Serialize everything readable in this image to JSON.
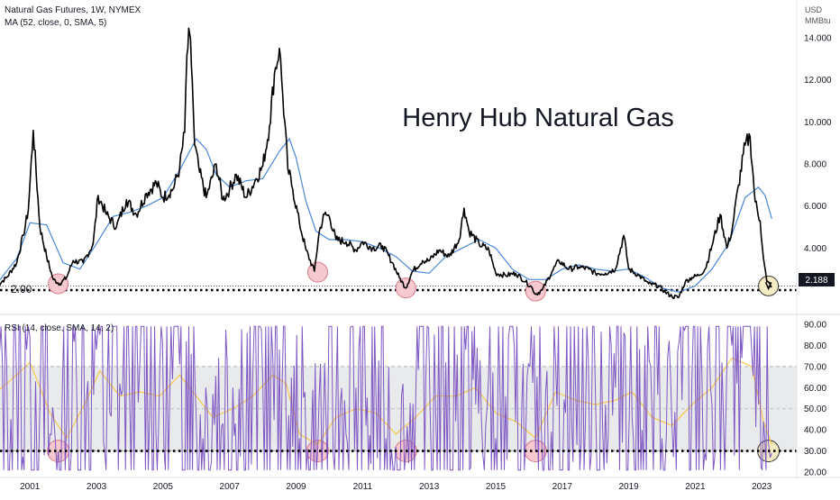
{
  "header": {
    "title_line": "Natural Gas Futures, 1W, NYMEX",
    "ma_line": "MA (52, close, 0, SMA, 5)",
    "currency": "USD",
    "unit": "MMBtu"
  },
  "annotation": {
    "title": "Henry Hub Natural Gas",
    "support_label": "2.00",
    "price_badge": "2.188"
  },
  "rsi_panel": {
    "legend": "RSI (14, close, SMA, 14, 2)"
  },
  "colors": {
    "price": "#000000",
    "ma": "#4a86d8",
    "rsi": "#7e57c2",
    "rsi_sma": "#f5c84c",
    "band": "#e9eaec",
    "circle_fill": "#f6c9d0",
    "circle_stroke": "#d77c89",
    "last_circle_fill": "#f4ecc4",
    "last_circle_stroke": "#333333"
  },
  "chart_data": [
    {
      "type": "line",
      "title": "Natural Gas Futures, 1W, NYMEX",
      "ylabel": "USD MMBtu",
      "ylim": [
        1.4,
        14.8
      ],
      "y_ticks": [
        "4.000",
        "6.000",
        "8.000",
        "10.000",
        "12.000",
        "14.000"
      ],
      "x_ticks": [
        "2001",
        "2003",
        "2005",
        "2007",
        "2009",
        "2011",
        "2013",
        "2015",
        "2017",
        "2019",
        "2021",
        "2023"
      ],
      "support_level": 2.0,
      "last_value": 2.188,
      "series": [
        {
          "name": "Natural Gas Futures, 1W, NYMEX",
          "x": [
            2000.0,
            2000.3,
            2000.6,
            2000.8,
            2000.95,
            2001.1,
            2001.3,
            2001.5,
            2001.7,
            2001.9,
            2002.1,
            2002.3,
            2002.6,
            2002.9,
            2003.05,
            2003.3,
            2003.6,
            2003.9,
            2004.2,
            2004.5,
            2004.8,
            2005.0,
            2005.3,
            2005.5,
            2005.65,
            2005.72,
            2005.8,
            2005.88,
            2005.95,
            2006.1,
            2006.3,
            2006.6,
            2006.8,
            2007.0,
            2007.2,
            2007.5,
            2007.8,
            2008.0,
            2008.2,
            2008.35,
            2008.5,
            2008.6,
            2008.75,
            2008.9,
            2009.1,
            2009.3,
            2009.55,
            2009.7,
            2009.85,
            2010.0,
            2010.2,
            2010.5,
            2010.8,
            2011.0,
            2011.3,
            2011.6,
            2011.9,
            2012.1,
            2012.3,
            2012.5,
            2012.8,
            2013.0,
            2013.3,
            2013.6,
            2013.9,
            2014.05,
            2014.2,
            2014.5,
            2014.8,
            2015.0,
            2015.3,
            2015.6,
            2015.9,
            2016.1,
            2016.2,
            2016.4,
            2016.7,
            2016.9,
            2017.2,
            2017.5,
            2017.8,
            2018.0,
            2018.3,
            2018.6,
            2018.85,
            2019.0,
            2019.3,
            2019.6,
            2019.9,
            2020.1,
            2020.3,
            2020.5,
            2020.7,
            2020.9,
            2021.1,
            2021.3,
            2021.5,
            2021.75,
            2021.95,
            2022.1,
            2022.3,
            2022.5,
            2022.65,
            2022.8,
            2022.95,
            2023.05,
            2023.15,
            2023.3
          ],
          "values": [
            2.2,
            2.6,
            3.3,
            4.6,
            5.8,
            9.6,
            5.0,
            3.6,
            2.5,
            2.3,
            2.6,
            3.4,
            3.3,
            4.2,
            6.5,
            5.6,
            5.0,
            6.3,
            5.6,
            6.6,
            7.1,
            6.4,
            6.8,
            7.8,
            9.5,
            13.2,
            14.2,
            12.0,
            8.9,
            7.6,
            6.4,
            8.0,
            6.3,
            6.8,
            7.5,
            6.4,
            7.3,
            7.9,
            9.8,
            12.3,
            13.5,
            11.3,
            7.8,
            6.8,
            5.2,
            3.9,
            2.9,
            4.8,
            5.6,
            5.5,
            4.4,
            4.3,
            3.9,
            4.3,
            4.0,
            4.1,
            3.3,
            2.6,
            2.1,
            2.9,
            3.4,
            3.4,
            3.9,
            3.6,
            4.4,
            5.9,
            4.8,
            4.2,
            3.9,
            2.8,
            2.7,
            2.8,
            2.4,
            2.1,
            1.8,
            2.0,
            2.9,
            3.4,
            3.0,
            3.1,
            3.0,
            2.8,
            2.8,
            3.0,
            4.6,
            3.0,
            2.7,
            2.3,
            2.2,
            1.9,
            1.7,
            1.65,
            2.4,
            2.6,
            2.7,
            3.0,
            4.1,
            5.6,
            4.0,
            4.8,
            7.0,
            8.9,
            9.3,
            6.2,
            5.3,
            3.5,
            2.4,
            2.19
          ]
        },
        {
          "name": "MA (52, close, 0, SMA, 5)",
          "x": [
            2000.0,
            2000.6,
            2001.0,
            2001.5,
            2002.0,
            2002.5,
            2003.0,
            2003.5,
            2004.0,
            2004.5,
            2005.0,
            2005.5,
            2006.0,
            2006.3,
            2006.6,
            2007.0,
            2007.5,
            2008.0,
            2008.5,
            2008.8,
            2009.0,
            2009.3,
            2009.6,
            2010.0,
            2010.5,
            2011.0,
            2011.5,
            2012.0,
            2012.5,
            2013.0,
            2013.5,
            2014.0,
            2014.5,
            2015.0,
            2015.5,
            2016.0,
            2016.5,
            2017.0,
            2017.5,
            2018.0,
            2018.5,
            2019.0,
            2019.5,
            2020.0,
            2020.5,
            2021.0,
            2021.5,
            2022.0,
            2022.5,
            2022.9,
            2023.1,
            2023.3
          ],
          "values": [
            2.3,
            3.5,
            5.2,
            5.1,
            3.3,
            3.0,
            4.2,
            5.5,
            5.7,
            6.0,
            6.4,
            7.7,
            9.2,
            8.7,
            7.5,
            6.9,
            7.2,
            7.3,
            8.6,
            9.2,
            8.3,
            6.2,
            4.8,
            4.4,
            4.4,
            4.3,
            4.0,
            3.6,
            2.9,
            2.8,
            3.6,
            4.0,
            4.4,
            4.0,
            3.0,
            2.5,
            2.5,
            3.0,
            3.2,
            3.0,
            2.9,
            3.0,
            2.6,
            2.1,
            1.9,
            2.2,
            3.0,
            4.2,
            6.4,
            6.9,
            6.5,
            5.4
          ]
        }
      ],
      "highlighted_lows": [
        {
          "x": 2001.85,
          "y": 2.3
        },
        {
          "x": 2009.65,
          "y": 2.85
        },
        {
          "x": 2012.3,
          "y": 2.1
        },
        {
          "x": 2016.2,
          "y": 1.95
        },
        {
          "x": 2023.2,
          "y": 2.2
        }
      ]
    },
    {
      "type": "line",
      "title": "RSI (14, close, SMA, 14, 2)",
      "ylim": [
        18,
        92
      ],
      "y_ticks": [
        "20.00",
        "30.00",
        "40.00",
        "50.00",
        "60.00",
        "70.00",
        "80.00",
        "90.00"
      ],
      "upper_band": 70,
      "lower_band": 30,
      "middle_line": 50,
      "dotted_level": 30,
      "series": [
        {
          "name": "RSI (14, close, SMA, 14, 2)",
          "x": [
            2000.0,
            2000.3,
            2000.6,
            2000.9,
            2001.0,
            2001.3,
            2001.6,
            2001.85,
            2002.1,
            2002.4,
            2002.7,
            2003.0,
            2003.1,
            2003.4,
            2003.7,
            2004.0,
            2004.3,
            2004.6,
            2004.9,
            2005.2,
            2005.5,
            2005.7,
            2005.85,
            2006.0,
            2006.2,
            2006.5,
            2006.8,
            2007.1,
            2007.4,
            2007.7,
            2008.0,
            2008.3,
            2008.5,
            2008.7,
            2008.9,
            2009.1,
            2009.35,
            2009.65,
            2009.9,
            2010.2,
            2010.5,
            2010.8,
            2011.1,
            2011.4,
            2011.7,
            2012.0,
            2012.3,
            2012.6,
            2012.9,
            2013.2,
            2013.5,
            2013.8,
            2014.1,
            2014.4,
            2014.7,
            2015.0,
            2015.3,
            2015.6,
            2015.9,
            2016.2,
            2016.5,
            2016.8,
            2017.1,
            2017.4,
            2017.7,
            2018.0,
            2018.3,
            2018.6,
            2018.85,
            2019.1,
            2019.4,
            2019.7,
            2020.0,
            2020.3,
            2020.6,
            2020.9,
            2021.2,
            2021.5,
            2021.8,
            2022.1,
            2022.4,
            2022.7,
            2022.9,
            2023.05,
            2023.2,
            2023.3
          ],
          "values": [
            55,
            72,
            62,
            78,
            84,
            52,
            38,
            30,
            43,
            64,
            55,
            78,
            85,
            48,
            62,
            54,
            70,
            47,
            68,
            52,
            71,
            82,
            76,
            44,
            36,
            57,
            43,
            60,
            49,
            67,
            62,
            74,
            78,
            46,
            32,
            36,
            31,
            30,
            46,
            52,
            38,
            60,
            42,
            58,
            36,
            32,
            29,
            58,
            66,
            46,
            72,
            44,
            78,
            52,
            42,
            36,
            56,
            44,
            36,
            30,
            57,
            72,
            48,
            62,
            44,
            56,
            52,
            60,
            86,
            46,
            40,
            49,
            36,
            42,
            54,
            64,
            66,
            52,
            72,
            80,
            74,
            76,
            52,
            44,
            34,
            29
          ]
        },
        {
          "name": "SMA (14)",
          "x": [
            2000.0,
            2000.6,
            2001.0,
            2001.6,
            2002.1,
            2002.7,
            2003.1,
            2003.7,
            2004.3,
            2004.9,
            2005.5,
            2006.0,
            2006.5,
            2007.1,
            2007.7,
            2008.3,
            2008.7,
            2009.1,
            2009.65,
            2010.2,
            2010.8,
            2011.4,
            2012.0,
            2012.6,
            2013.2,
            2013.8,
            2014.4,
            2015.0,
            2015.6,
            2016.2,
            2016.8,
            2017.4,
            2018.0,
            2018.6,
            2019.1,
            2019.7,
            2020.3,
            2020.9,
            2021.5,
            2022.1,
            2022.7,
            2023.05,
            2023.3
          ],
          "values": [
            58,
            66,
            72,
            48,
            36,
            54,
            68,
            56,
            58,
            56,
            66,
            56,
            46,
            50,
            56,
            66,
            62,
            38,
            33,
            46,
            50,
            48,
            38,
            46,
            56,
            56,
            60,
            48,
            44,
            36,
            58,
            54,
            52,
            54,
            58,
            46,
            42,
            52,
            60,
            74,
            70,
            44,
            33
          ]
        }
      ],
      "highlighted_lows": [
        {
          "x": 2001.85,
          "y": 30
        },
        {
          "x": 2009.65,
          "y": 30
        },
        {
          "x": 2012.3,
          "y": 30
        },
        {
          "x": 2016.2,
          "y": 30
        },
        {
          "x": 2023.2,
          "y": 30
        }
      ]
    }
  ]
}
